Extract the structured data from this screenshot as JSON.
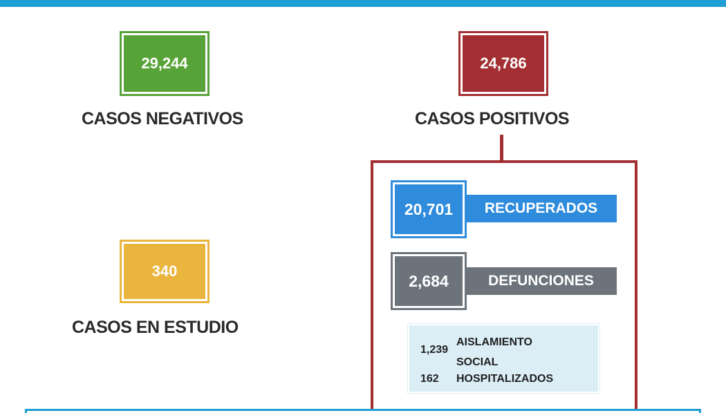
{
  "colors": {
    "top_bar": "#1e9fd6",
    "negativos": "#58a338",
    "positivos": "#a32f33",
    "estudio": "#e9b53c",
    "recuperados": "#2f8bdc",
    "defunciones": "#6c737b",
    "detail_bg": "#dbeef6"
  },
  "negativos": {
    "value": "29,244",
    "label": "CASOS NEGATIVOS"
  },
  "positivos": {
    "value": "24,786",
    "label": "CASOS POSITIVOS"
  },
  "estudio": {
    "value": "340",
    "label": "CASOS EN ESTUDIO"
  },
  "recuperados": {
    "value": "20,701",
    "label": "RECUPERADOS"
  },
  "defunciones": {
    "value": "2,684",
    "label": "DEFUNCIONES"
  },
  "aislamiento": {
    "value": "1,239",
    "label_line1": "AISLAMIENTO",
    "label_line2": "SOCIAL"
  },
  "hospitalizados": {
    "value": "162",
    "label": "HOSPITALIZADOS"
  }
}
